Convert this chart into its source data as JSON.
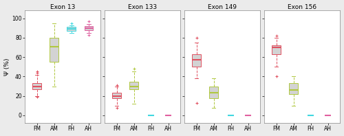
{
  "titles": [
    "Exon 13",
    "Exon 133",
    "Exon 149",
    "Exon 156"
  ],
  "groups": [
    "FM",
    "AM",
    "FH",
    "AH"
  ],
  "group_colors": [
    "#e05060",
    "#b0c840",
    "#40d8e0",
    "#e060a0"
  ],
  "ylabel": "Ψ (%)",
  "ylim": [
    -8,
    108
  ],
  "yticks": [
    0,
    20,
    40,
    60,
    80,
    100
  ],
  "plots": [
    {
      "FM": {
        "q1": 27,
        "median": 30,
        "q3": 33,
        "whislo": 20,
        "whishi": 42,
        "fliers_lo": [
          19
        ],
        "fliers_hi": [
          44,
          45
        ]
      },
      "AM": {
        "q1": 55,
        "median": 71,
        "q3": 80,
        "whislo": 30,
        "whishi": 95,
        "fliers_lo": [],
        "fliers_hi": []
      },
      "FH": {
        "q1": 87,
        "median": 89,
        "q3": 91,
        "whislo": 85,
        "whishi": 93,
        "fliers_lo": [],
        "fliers_hi": [
          95
        ]
      },
      "AH": {
        "q1": 88,
        "median": 90,
        "q3": 92,
        "whislo": 85,
        "whishi": 94,
        "fliers_lo": [
          83
        ],
        "fliers_hi": [
          97
        ]
      }
    },
    {
      "FM": {
        "q1": 18,
        "median": 20,
        "q3": 23,
        "whislo": 10,
        "whishi": 30,
        "fliers_lo": [
          8
        ],
        "fliers_hi": [
          31
        ]
      },
      "AM": {
        "q1": 27,
        "median": 30,
        "q3": 35,
        "whislo": 12,
        "whishi": 45,
        "fliers_lo": [],
        "fliers_hi": [
          48
        ]
      },
      "FH": {
        "q1": 0,
        "median": 0,
        "q3": 0,
        "whislo": 0,
        "whishi": 0,
        "fliers_lo": [],
        "fliers_hi": []
      },
      "AH": {
        "q1": 0,
        "median": 0,
        "q3": 0,
        "whislo": 0,
        "whishi": 0,
        "fliers_lo": [],
        "fliers_hi": []
      }
    },
    {
      "FM": {
        "q1": 50,
        "median": 57,
        "q3": 63,
        "whislo": 38,
        "whishi": 75,
        "fliers_lo": [
          13
        ],
        "fliers_hi": [
          80
        ]
      },
      "AM": {
        "q1": 18,
        "median": 23,
        "q3": 30,
        "whislo": 8,
        "whishi": 38,
        "fliers_lo": [],
        "fliers_hi": []
      },
      "FH": {
        "q1": 0,
        "median": 0,
        "q3": 0,
        "whislo": 0,
        "whishi": 0,
        "fliers_lo": [],
        "fliers_hi": []
      },
      "AH": {
        "q1": 0,
        "median": 0,
        "q3": 0,
        "whislo": 0,
        "whishi": 0,
        "fliers_lo": [],
        "fliers_hi": []
      }
    },
    {
      "FM": {
        "q1": 63,
        "median": 70,
        "q3": 72,
        "whislo": 50,
        "whishi": 80,
        "fliers_lo": [
          40
        ],
        "fliers_hi": [
          82
        ]
      },
      "AM": {
        "q1": 22,
        "median": 26,
        "q3": 33,
        "whislo": 10,
        "whishi": 40,
        "fliers_lo": [],
        "fliers_hi": []
      },
      "FH": {
        "q1": 0,
        "median": 0,
        "q3": 0,
        "whislo": 0,
        "whishi": 0,
        "fliers_lo": [],
        "fliers_hi": []
      },
      "AH": {
        "q1": 0,
        "median": 0,
        "q3": 0,
        "whislo": 0,
        "whishi": 0,
        "fliers_lo": [],
        "fliers_hi": []
      }
    }
  ],
  "background_color": "#ebebeb",
  "panel_background": "#ffffff",
  "box_fill": "#d3d3d3"
}
